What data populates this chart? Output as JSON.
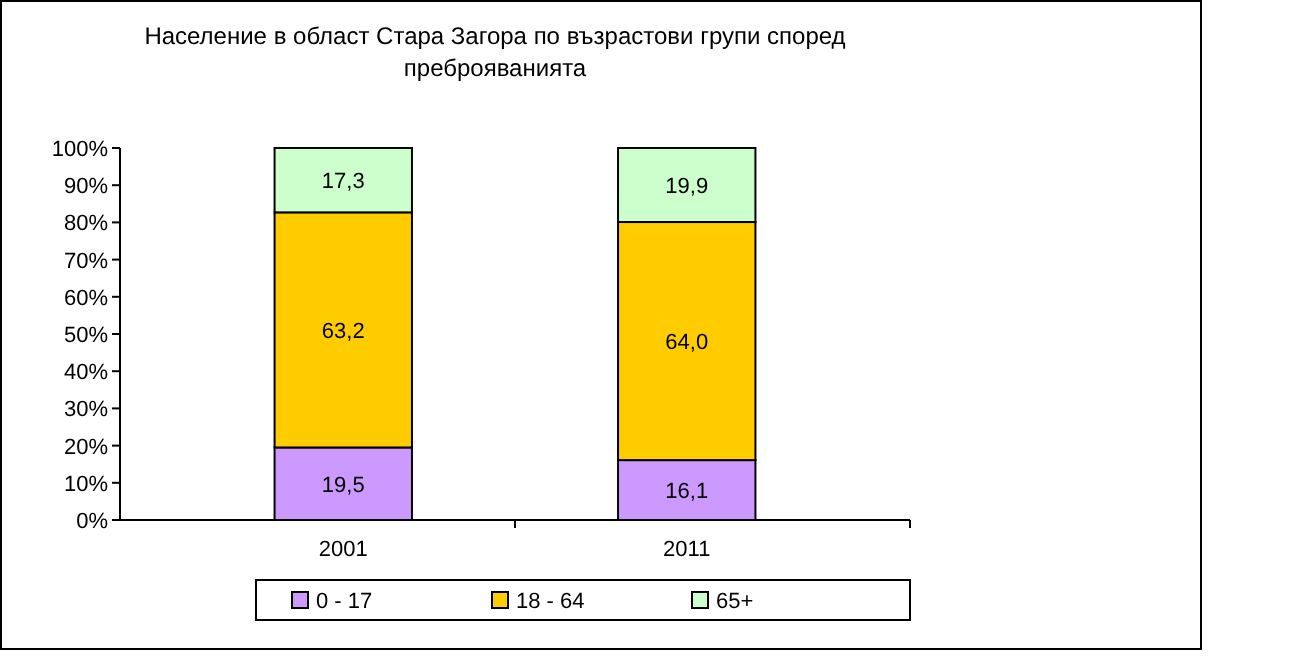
{
  "chart_data": {
    "type": "bar",
    "stacked": true,
    "title": "Население в област Стара Загора по възрастови групи според преброяванията",
    "categories": [
      "2001",
      "2011"
    ],
    "series": [
      {
        "name": "0 - 17",
        "color": "#cc99ff",
        "values": [
          19.5,
          16.1
        ],
        "value_labels": [
          "19,5",
          "16,1"
        ]
      },
      {
        "name": "18 - 64",
        "color": "#ffcc00",
        "values": [
          63.2,
          64.0
        ],
        "value_labels": [
          "63,2",
          "64,0"
        ]
      },
      {
        "name": "65+",
        "color": "#ccffcc",
        "values": [
          17.3,
          19.9
        ],
        "value_labels": [
          "17,3",
          "19,9"
        ]
      }
    ],
    "ylim": [
      0,
      100
    ],
    "yticks": [
      {
        "value": 0,
        "label": "0%"
      },
      {
        "value": 10,
        "label": "10%"
      },
      {
        "value": 20,
        "label": "20%"
      },
      {
        "value": 30,
        "label": "30%"
      },
      {
        "value": 40,
        "label": "40%"
      },
      {
        "value": 50,
        "label": "50%"
      },
      {
        "value": 60,
        "label": "60%"
      },
      {
        "value": 70,
        "label": "70%"
      },
      {
        "value": 80,
        "label": "80%"
      },
      {
        "value": 90,
        "label": "90%"
      },
      {
        "value": 100,
        "label": "100%"
      }
    ],
    "grid": false,
    "legend": "bottom"
  }
}
